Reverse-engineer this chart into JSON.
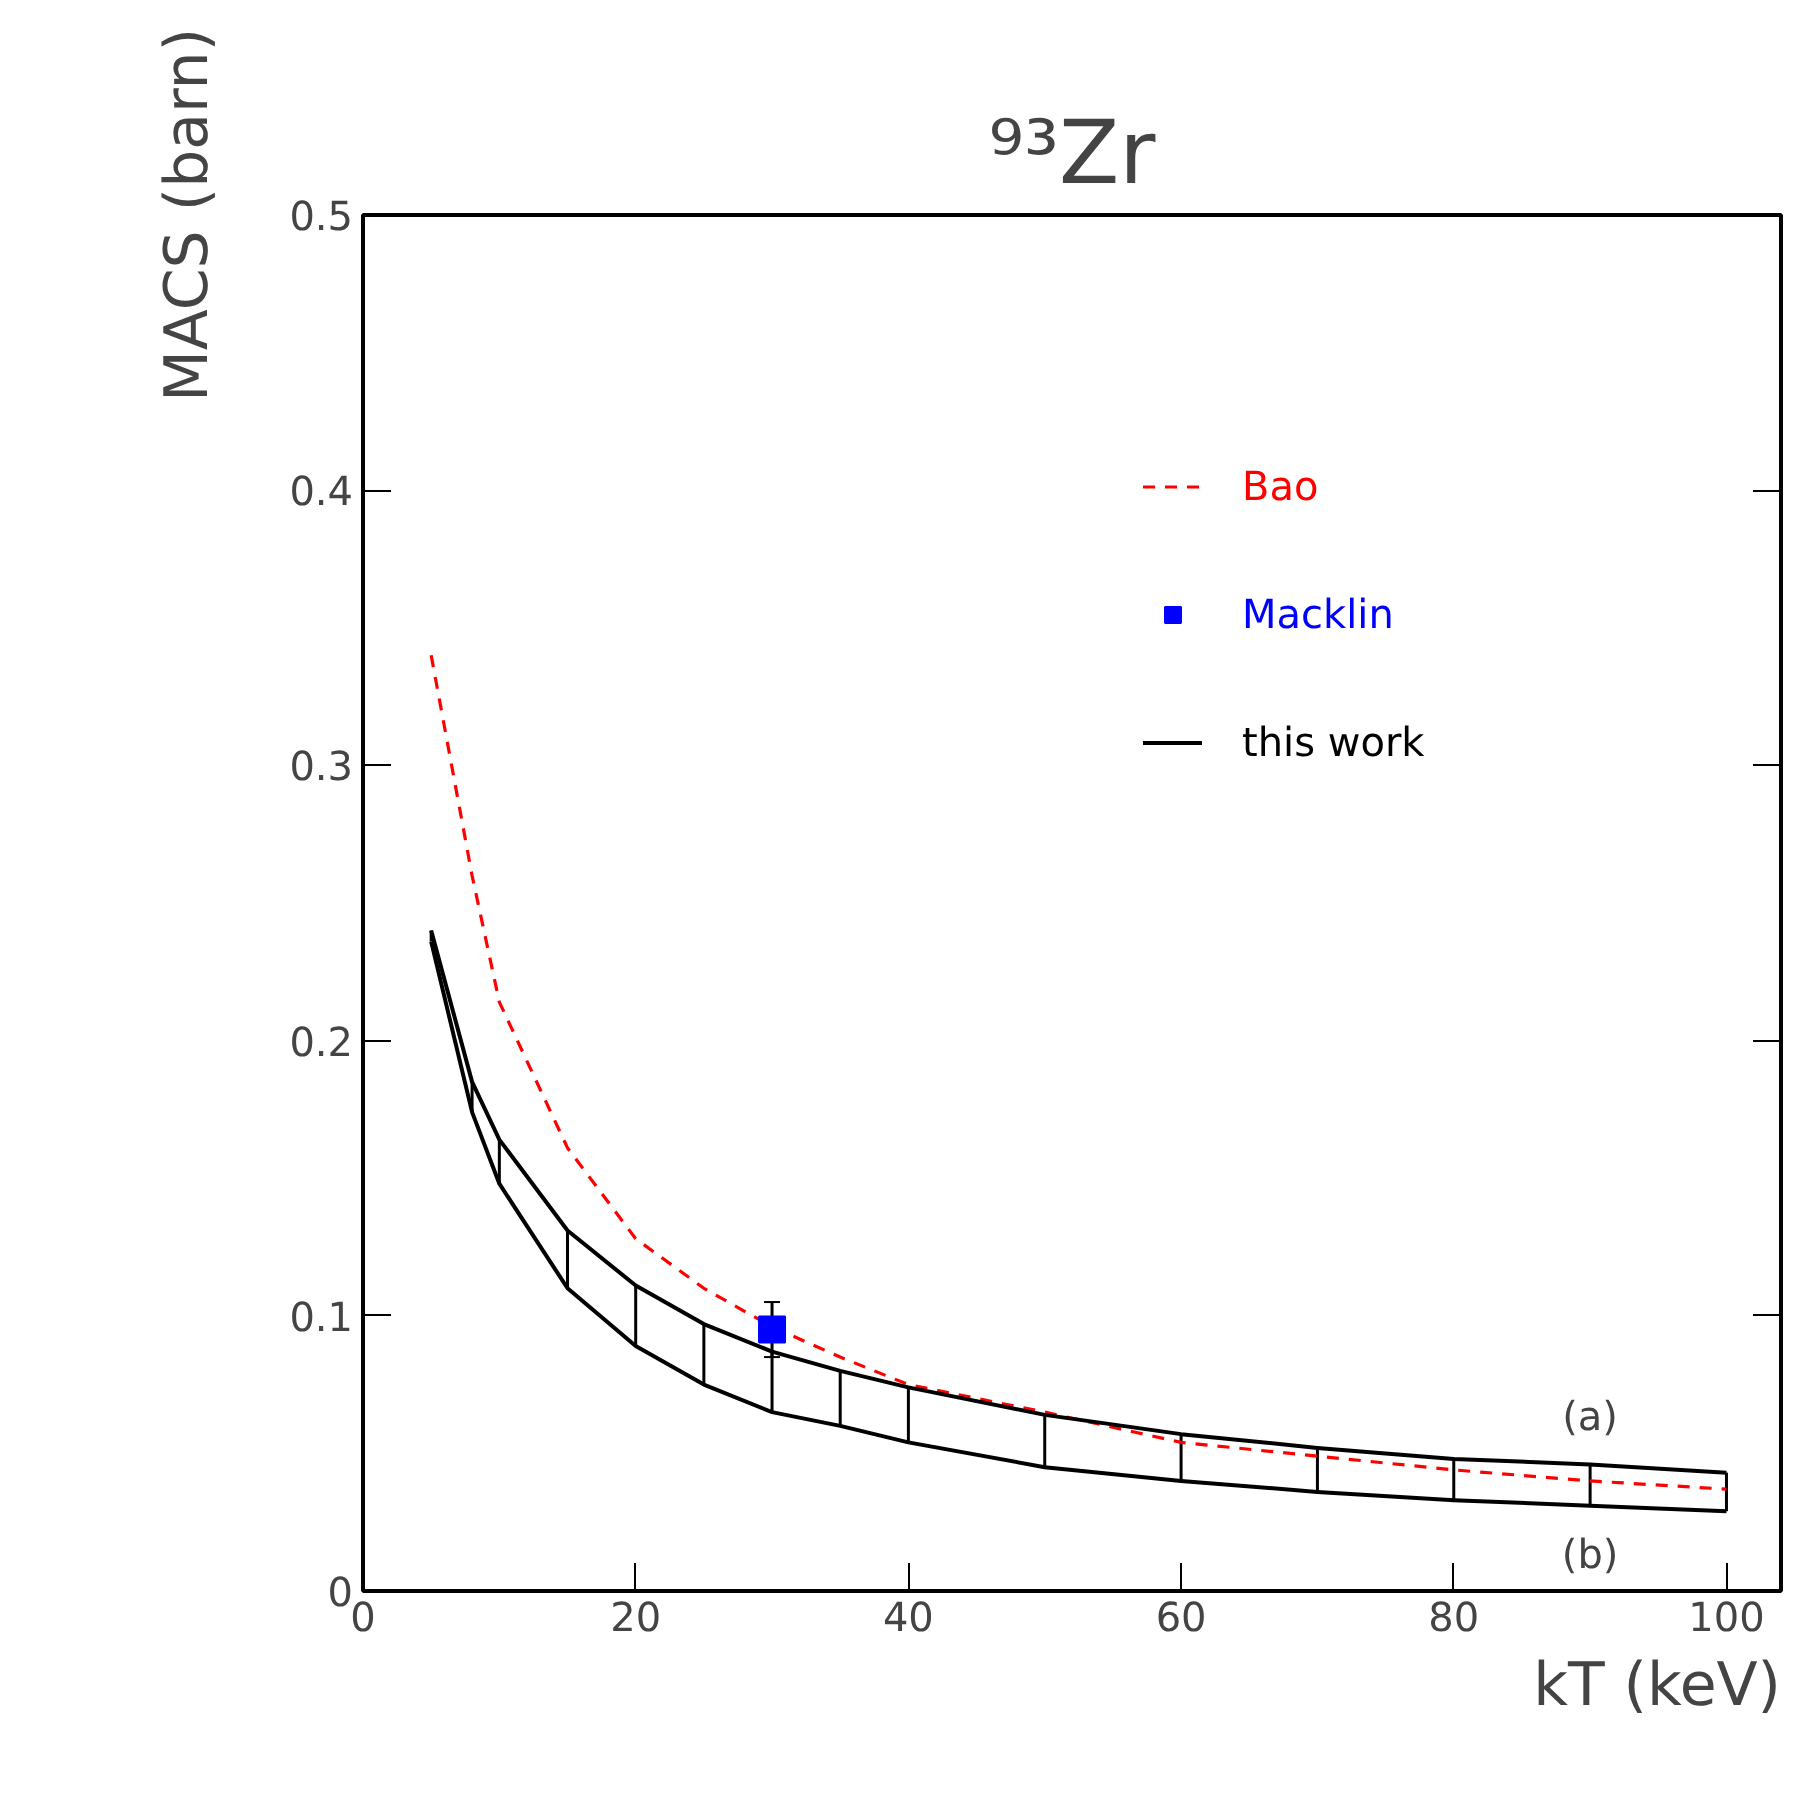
{
  "chart_data": {
    "type": "line",
    "title": "⁹³Zr",
    "xlabel": "kT (keV)",
    "ylabel": "MACS (barn)",
    "xlim": [
      0,
      104
    ],
    "xticks": [
      0,
      20,
      40,
      60,
      80,
      100
    ],
    "ylim": [
      0,
      0.5
    ],
    "yticks": [
      0,
      0.1,
      0.2,
      0.3,
      0.4,
      0.5
    ],
    "grid": false,
    "legend": "top right",
    "series": [
      {
        "name": "Bao",
        "line_style": "dashed",
        "color": "#ff0000",
        "x": [
          5,
          8,
          10,
          15,
          20,
          25,
          30,
          35,
          40,
          50,
          60,
          70,
          80,
          90,
          100
        ],
        "values": [
          0.34,
          0.26,
          0.214,
          0.161,
          0.128,
          0.11,
          0.096,
          0.085,
          0.075,
          0.065,
          0.054,
          0.049,
          0.044,
          0.04,
          0.037
        ]
      },
      {
        "name": "Macklin",
        "type": "scatter",
        "marker": "square",
        "color": "#0000ff",
        "x": [
          30
        ],
        "values": [
          0.095
        ],
        "errors": [
          0.01
        ]
      },
      {
        "name": "this work",
        "line_style": "solid",
        "color": "#000000",
        "x": [
          5,
          8,
          10,
          15,
          20,
          25,
          30,
          35,
          40,
          50,
          60,
          70,
          80,
          90,
          100
        ],
        "values": [
          0.24,
          0.185,
          0.164,
          0.131,
          0.111,
          0.097,
          0.087,
          0.08,
          0.074,
          0.064,
          0.057,
          0.052,
          0.048,
          0.046,
          0.043
        ]
      },
      {
        "line_style": "solid",
        "color": "#000000",
        "x": [
          5,
          8,
          10,
          15,
          20,
          25,
          30,
          35,
          40,
          50,
          60,
          70,
          80,
          90,
          100
        ],
        "values": [
          0.236,
          0.174,
          0.148,
          0.11,
          0.089,
          0.075,
          0.065,
          0.06,
          0.054,
          0.045,
          0.04,
          0.036,
          0.033,
          0.031,
          0.029
        ],
        "errors": [
          [
            0.236,
            0.24
          ],
          [
            0.174,
            0.185
          ],
          [
            0.148,
            0.164
          ],
          [
            0.11,
            0.131
          ],
          [
            0.089,
            0.111
          ],
          [
            0.075,
            0.097
          ],
          [
            0.065,
            0.087
          ],
          [
            0.06,
            0.08
          ],
          [
            0.054,
            0.074
          ],
          [
            0.045,
            0.064
          ],
          [
            0.04,
            0.057
          ],
          [
            0.036,
            0.052
          ],
          [
            0.033,
            0.048
          ],
          [
            0.031,
            0.046
          ],
          [
            0.029,
            0.043
          ]
        ]
      }
    ],
    "annotations": [
      "(a)",
      "(b)"
    ]
  }
}
